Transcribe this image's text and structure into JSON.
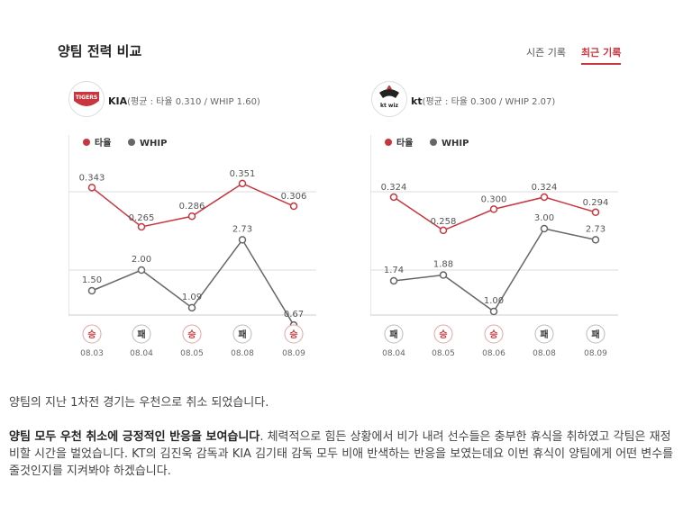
{
  "header": {
    "title": "양팀 전력 비교",
    "tabs": [
      "시즌 기록",
      "최근 기록"
    ],
    "active_tab": 1
  },
  "legend": {
    "avg": "타율",
    "whip": "WHIP",
    "avg_color": "#c8373f",
    "whip_color": "#666666"
  },
  "teams": [
    {
      "name": "KIA",
      "stats": "(평균 : 타율 0.310 / WHIP 1.60)",
      "logo_text": "TIGERS"
    },
    {
      "name": "kt",
      "stats": "(평균 : 타율 0.300 / WHIP 2.07)",
      "logo_text": "kt wiz"
    }
  ],
  "chart_data": [
    {
      "type": "line",
      "categories": [
        "08.03",
        "08.04",
        "08.05",
        "08.08",
        "08.09"
      ],
      "results": [
        "승",
        "패",
        "승",
        "패",
        "승"
      ],
      "series": [
        {
          "name": "타율",
          "values": [
            0.343,
            0.265,
            0.286,
            0.351,
            0.306
          ],
          "labels": [
            "0.343",
            "0.265",
            "0.286",
            "0.351",
            "0.306"
          ]
        },
        {
          "name": "WHIP",
          "values": [
            1.5,
            2.0,
            1.09,
            2.73,
            0.67
          ],
          "labels": [
            "1.50",
            "2.00",
            "1.09",
            "2.73",
            "0.67"
          ]
        }
      ]
    },
    {
      "type": "line",
      "categories": [
        "08.04",
        "08.05",
        "08.06",
        "08.08",
        "08.09"
      ],
      "results": [
        "패",
        "승",
        "승",
        "패",
        "패"
      ],
      "series": [
        {
          "name": "타율",
          "values": [
            0.324,
            0.258,
            0.3,
            0.324,
            0.294
          ],
          "labels": [
            "0.324",
            "0.258",
            "0.300",
            "0.324",
            "0.294"
          ]
        },
        {
          "name": "WHIP",
          "values": [
            1.74,
            1.88,
            1.0,
            3.0,
            2.73
          ],
          "labels": [
            "1.74",
            "1.88",
            "1.00",
            "3.00",
            "2.73"
          ]
        }
      ]
    }
  ],
  "article": {
    "line1": "양팀의 지난 1차전 경기는 우천으로 취소 되었습니다.",
    "bold": "양팀 모두 우천 취소에 긍정적인 반응을 보여습니다",
    "rest": ". 체력적으로 힘든 상황에서 비가 내려 선수들은 충부한 휴식을 취하였고 각팀은 재정비할 시간을 벌었습니다. KT의 김진욱 감독과 KIA 김기태 감독 모두 비애 반색하는 반응을 보였는데요 이번 휴식이 양팀에게 어떤 변수를 줄것인지를 지켜봐야 하겠습니다."
  }
}
